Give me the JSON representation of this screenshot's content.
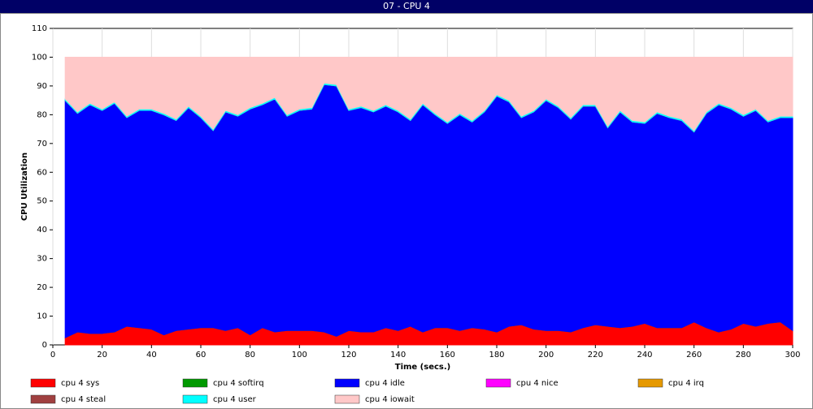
{
  "chart_data": {
    "type": "stacked_area",
    "title": "07 - CPU 4",
    "x_label": "Time (secs.)",
    "y_label": "CPU Utilization",
    "x": [
      5,
      10,
      15,
      20,
      25,
      30,
      35,
      40,
      45,
      50,
      55,
      60,
      65,
      70,
      75,
      80,
      85,
      90,
      95,
      100,
      105,
      110,
      115,
      120,
      125,
      130,
      135,
      140,
      145,
      150,
      155,
      160,
      165,
      170,
      175,
      180,
      185,
      190,
      195,
      200,
      205,
      210,
      215,
      220,
      225,
      230,
      235,
      240,
      245,
      250,
      255,
      260,
      265,
      270,
      275,
      280,
      285,
      290,
      295,
      300
    ],
    "xlim": [
      0,
      300
    ],
    "xticks": [
      0,
      20,
      40,
      60,
      80,
      100,
      120,
      140,
      160,
      180,
      200,
      220,
      240,
      260,
      280,
      300
    ],
    "ylim": [
      0,
      110
    ],
    "yticks": [
      0,
      10,
      20,
      30,
      40,
      50,
      60,
      70,
      80,
      90,
      100,
      110
    ],
    "grid": "x",
    "series": [
      {
        "name": "cpu 4 sys",
        "color": "#ff0000",
        "values": [
          2.5,
          4.5,
          4,
          4,
          4.5,
          6.5,
          6,
          5.5,
          3.5,
          5,
          5.5,
          6,
          6,
          5,
          6,
          3.5,
          6,
          4.5,
          5,
          5,
          5,
          4.5,
          3,
          5,
          4.5,
          4.5,
          6,
          5,
          6.5,
          4.5,
          6,
          6,
          5,
          6,
          5.5,
          4.5,
          6.5,
          7,
          5.5,
          5,
          5,
          4.5,
          6,
          7,
          6.5,
          6,
          6.5,
          7.5,
          6,
          6,
          6,
          8,
          6,
          4.5,
          5.5,
          7.5,
          6.5,
          7.5,
          8,
          5
        ]
      },
      {
        "name": "cpu 4 softirq",
        "color": "#009900",
        "values": [
          0,
          0,
          0,
          0,
          0,
          0,
          0,
          0,
          0,
          0,
          0,
          0,
          0,
          0,
          0,
          0,
          0,
          0,
          0,
          0,
          0,
          0,
          0,
          0,
          0,
          0,
          0,
          0,
          0,
          0,
          0,
          0,
          0,
          0,
          0,
          0,
          0,
          0,
          0,
          0,
          0,
          0,
          0,
          0,
          0,
          0,
          0,
          0,
          0,
          0,
          0,
          0,
          0,
          0,
          0,
          0,
          0,
          0,
          0,
          0
        ]
      },
      {
        "name": "cpu 4 idle",
        "color": "#0000ff",
        "values": [
          82.5,
          76,
          79.5,
          77.5,
          79.5,
          72.5,
          75.5,
          76,
          76.5,
          73,
          77,
          73,
          68.5,
          76,
          73.5,
          78.5,
          77.5,
          81,
          74.5,
          76.5,
          77,
          86,
          87,
          76.5,
          78,
          76.5,
          77,
          76,
          71.5,
          79,
          74,
          71,
          75,
          71.5,
          75.5,
          82,
          78,
          72,
          75.5,
          80,
          77.5,
          74,
          77,
          76,
          69,
          75,
          71,
          69.5,
          74.5,
          73,
          72,
          66,
          74.5,
          79,
          76.5,
          72,
          75,
          70,
          71,
          74
        ]
      },
      {
        "name": "cpu 4 nice",
        "color": "#ff00ff",
        "values": [
          0,
          0,
          0,
          0,
          0,
          0,
          0,
          0,
          0,
          0,
          0,
          0,
          0,
          0,
          0,
          0,
          0,
          0,
          0,
          0,
          0,
          0,
          0,
          0,
          0,
          0,
          0,
          0,
          0,
          0,
          0,
          0,
          0,
          0,
          0,
          0,
          0,
          0,
          0,
          0,
          0,
          0,
          0,
          0,
          0,
          0,
          0,
          0,
          0,
          0,
          0,
          0,
          0,
          0,
          0,
          0,
          0,
          0,
          0,
          0
        ]
      },
      {
        "name": "cpu 4 irq",
        "color": "#e69900",
        "values": [
          0,
          0,
          0,
          0,
          0,
          0,
          0,
          0,
          0,
          0,
          0,
          0,
          0,
          0,
          0,
          0,
          0,
          0,
          0,
          0,
          0,
          0,
          0,
          0,
          0,
          0,
          0,
          0,
          0,
          0,
          0,
          0,
          0,
          0,
          0,
          0,
          0,
          0,
          0,
          0,
          0,
          0,
          0,
          0,
          0,
          0,
          0,
          0,
          0,
          0,
          0,
          0,
          0,
          0,
          0,
          0,
          0,
          0,
          0,
          0
        ]
      },
      {
        "name": "cpu 4 steal",
        "color": "#a04040",
        "values": [
          0,
          0,
          0,
          0,
          0,
          0,
          0,
          0,
          0,
          0,
          0,
          0,
          0,
          0,
          0,
          0,
          0,
          0,
          0,
          0,
          0,
          0,
          0,
          0,
          0,
          0,
          0,
          0,
          0,
          0,
          0,
          0,
          0,
          0,
          0,
          0,
          0,
          0,
          0,
          0,
          0,
          0,
          0,
          0,
          0,
          0,
          0,
          0,
          0,
          0,
          0,
          0,
          0,
          0,
          0,
          0,
          0,
          0,
          0,
          0
        ]
      },
      {
        "name": "cpu 4 user",
        "color": "#00ffff",
        "values": [
          0.5,
          0.5,
          0.5,
          0.5,
          0.5,
          0.5,
          0.5,
          0.5,
          0.5,
          0.5,
          0.5,
          0.5,
          0.5,
          0.5,
          0.5,
          0.5,
          0.5,
          0.5,
          0.5,
          0.5,
          0.5,
          0.5,
          0.5,
          0.5,
          0.5,
          0.5,
          0.5,
          0.5,
          0.5,
          0.5,
          0.5,
          0.5,
          0.5,
          0.5,
          0.5,
          0.5,
          0.5,
          0.5,
          0.5,
          0.5,
          0.5,
          0.5,
          0.5,
          0.5,
          0.5,
          0.5,
          0.5,
          0.5,
          0.5,
          0.5,
          0.5,
          0.5,
          0.5,
          0.5,
          0.5,
          0.5,
          0.5,
          0.5,
          0.5,
          0.5
        ]
      },
      {
        "name": "cpu 4 iowait",
        "color": "#ffc8c8",
        "values": [
          14.5,
          19,
          16,
          18,
          15.5,
          20.5,
          18,
          18,
          19.5,
          21.5,
          17,
          20.5,
          25,
          18.5,
          20,
          17.5,
          16,
          14,
          20,
          18,
          17.5,
          9,
          9.5,
          18,
          17,
          18.5,
          16.5,
          18.5,
          21.5,
          16,
          19.5,
          22.5,
          19.5,
          22,
          18.5,
          13,
          15,
          20.5,
          18.5,
          14.5,
          17,
          21,
          16.5,
          16.5,
          24,
          18.5,
          22,
          22.5,
          19,
          20.5,
          21.5,
          25.5,
          19,
          16,
          17.5,
          20,
          18,
          22,
          20.5,
          20.5
        ]
      }
    ]
  }
}
